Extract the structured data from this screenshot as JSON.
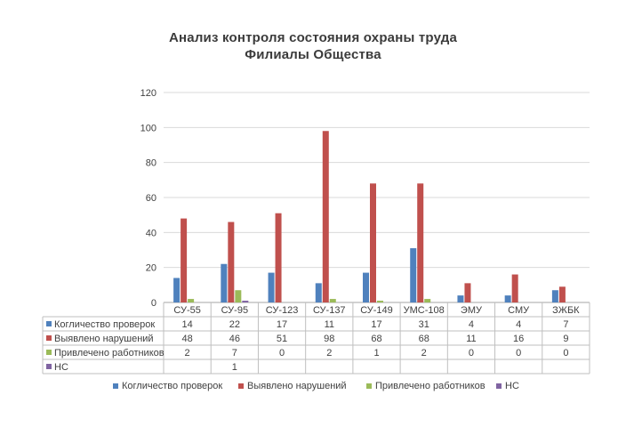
{
  "chart_data": {
    "type": "bar",
    "title_lines": [
      "Анализ контроля состояния охраны труда",
      "Филиалы Общества"
    ],
    "categories": [
      "СУ-55",
      "СУ-95",
      "СУ-123",
      "СУ-137",
      "СУ-149",
      "УМС-108",
      "ЭМУ",
      "СМУ",
      "ЗЖБК"
    ],
    "y_ticks": [
      "0",
      "20",
      "40",
      "60",
      "80",
      "100",
      "120"
    ],
    "ylim": [
      0,
      120
    ],
    "grid": true,
    "legend_position": "bottom",
    "series": [
      {
        "name": "Когличество проверок",
        "color": "#4f81bd",
        "values": [
          14,
          22,
          17,
          11,
          17,
          31,
          4,
          4,
          7
        ],
        "labels": [
          "14",
          "22",
          "17",
          "11",
          "17",
          "31",
          "4",
          "4",
          "7"
        ]
      },
      {
        "name": "Выявлено нарушений",
        "color": "#c0504d",
        "values": [
          48,
          46,
          51,
          98,
          68,
          68,
          11,
          16,
          9
        ],
        "labels": [
          "48",
          "46",
          "51",
          "98",
          "68",
          "68",
          "11",
          "16",
          "9"
        ]
      },
      {
        "name": "Привлечено работников",
        "color": "#9bbb59",
        "values": [
          2,
          7,
          0,
          2,
          1,
          2,
          0,
          0,
          0
        ],
        "labels": [
          "2",
          "7",
          "0",
          "2",
          "1",
          "2",
          "0",
          "0",
          "0"
        ]
      },
      {
        "name": "НС",
        "color": "#8064a2",
        "values": [
          null,
          1,
          null,
          null,
          null,
          null,
          null,
          null,
          null
        ],
        "labels": [
          "",
          "1",
          "",
          "",
          "",
          "",
          "",
          "",
          ""
        ]
      }
    ]
  }
}
